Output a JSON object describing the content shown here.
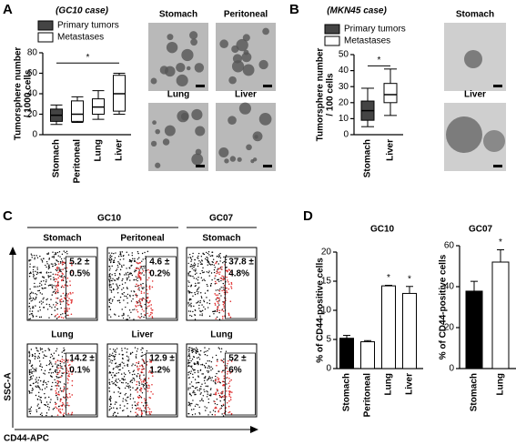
{
  "panel_letters": [
    "A",
    "B",
    "C",
    "D"
  ],
  "chart_data": [
    {
      "type": "box",
      "title": "(GC10 case)",
      "y_label": [
        "Tumorsphere number",
        "/ 1000 cells"
      ],
      "legend": [
        {
          "name": "Primary tumors",
          "color": "#444444"
        },
        {
          "name": "Metastases",
          "color": "#ffffff"
        }
      ],
      "categories": [
        "Stomach",
        "Peritoneal",
        "Lung",
        "Liver"
      ],
      "fills": [
        "#444444",
        "#ffffff",
        "#ffffff",
        "#ffffff"
      ],
      "boxes": [
        {
          "min": 10,
          "q1": 13,
          "median": 19,
          "q3": 25,
          "max": 29
        },
        {
          "min": 12,
          "q1": 13,
          "median": 20,
          "q3": 33,
          "max": 37
        },
        {
          "min": 15,
          "q1": 20,
          "median": 27,
          "q3": 35,
          "max": 43
        },
        {
          "min": 20,
          "q1": 23,
          "median": 40,
          "q3": 58,
          "max": 60
        }
      ],
      "significance": {
        "label": "*",
        "y": 70
      },
      "ylim": [
        0,
        80
      ],
      "yticks": [
        0,
        20,
        40,
        60,
        80
      ]
    },
    {
      "type": "box",
      "title": "(MKN45 case)",
      "y_label": [
        "Tumorsphere number",
        "/ 100 cells"
      ],
      "legend": [
        {
          "name": "Primary tumors",
          "color": "#444444"
        },
        {
          "name": "Metastases",
          "color": "#ffffff"
        }
      ],
      "categories": [
        "Stomach",
        "Liver"
      ],
      "fills": [
        "#444444",
        "#ffffff"
      ],
      "boxes": [
        {
          "min": 5,
          "q1": 9,
          "median": 15,
          "q3": 21,
          "max": 29
        },
        {
          "min": 12,
          "q1": 20,
          "median": 25,
          "q3": 32,
          "max": 41
        }
      ],
      "significance": {
        "label": "*",
        "y": 43
      },
      "ylim": [
        0,
        50
      ],
      "yticks": [
        0,
        10,
        20,
        30,
        40,
        50
      ]
    },
    {
      "type": "bar",
      "title": "GC10",
      "y_label": [
        "% of CD44-positive cells"
      ],
      "categories": [
        "Stomach",
        "Peritoneal",
        "Lung",
        "Liver"
      ],
      "colors": [
        "#000000",
        "#ffffff",
        "#ffffff",
        "#ffffff"
      ],
      "values": [
        5.2,
        4.6,
        14.2,
        12.9
      ],
      "errors": [
        0.5,
        0.2,
        0.1,
        1.2
      ],
      "annotations": [
        null,
        null,
        "*",
        "*"
      ],
      "ylim": [
        0,
        20
      ],
      "yticks": [
        0,
        5,
        10,
        15,
        20
      ]
    },
    {
      "type": "bar",
      "title": "GC07",
      "y_label": [
        "% of CD44-positive cells"
      ],
      "categories": [
        "Stomach",
        "Lung"
      ],
      "colors": [
        "#000000",
        "#ffffff"
      ],
      "values": [
        37.8,
        52
      ],
      "errors": [
        4.8,
        6
      ],
      "annotations": [
        null,
        "*"
      ],
      "ylim": [
        0,
        60
      ],
      "yticks": [
        0,
        20,
        40,
        60
      ]
    }
  ],
  "images": {
    "A": [
      "Stomach",
      "Peritoneal",
      "Lung",
      "Liver"
    ],
    "B": [
      "Stomach",
      "Liver"
    ]
  },
  "flow": {
    "groups": [
      "GC10",
      "GC07"
    ],
    "y_axis": "SSC-A",
    "x_axis": "CD44-APC",
    "plots": [
      {
        "title": "Stomach",
        "stat": [
          "5.2 ±",
          "0.5%"
        ]
      },
      {
        "title": "Peritoneal",
        "stat": [
          "4.6 ±",
          "0.2%"
        ]
      },
      {
        "title": "Stomach",
        "stat": [
          "37.8 ±",
          "4.8%"
        ]
      },
      {
        "title": "Lung",
        "stat": [
          "14.2 ±",
          "0.1%"
        ]
      },
      {
        "title": "Liver",
        "stat": [
          "12.9 ±",
          "1.2%"
        ]
      },
      {
        "title": "Lung",
        "stat": [
          "52 ±",
          "6%"
        ]
      }
    ]
  }
}
